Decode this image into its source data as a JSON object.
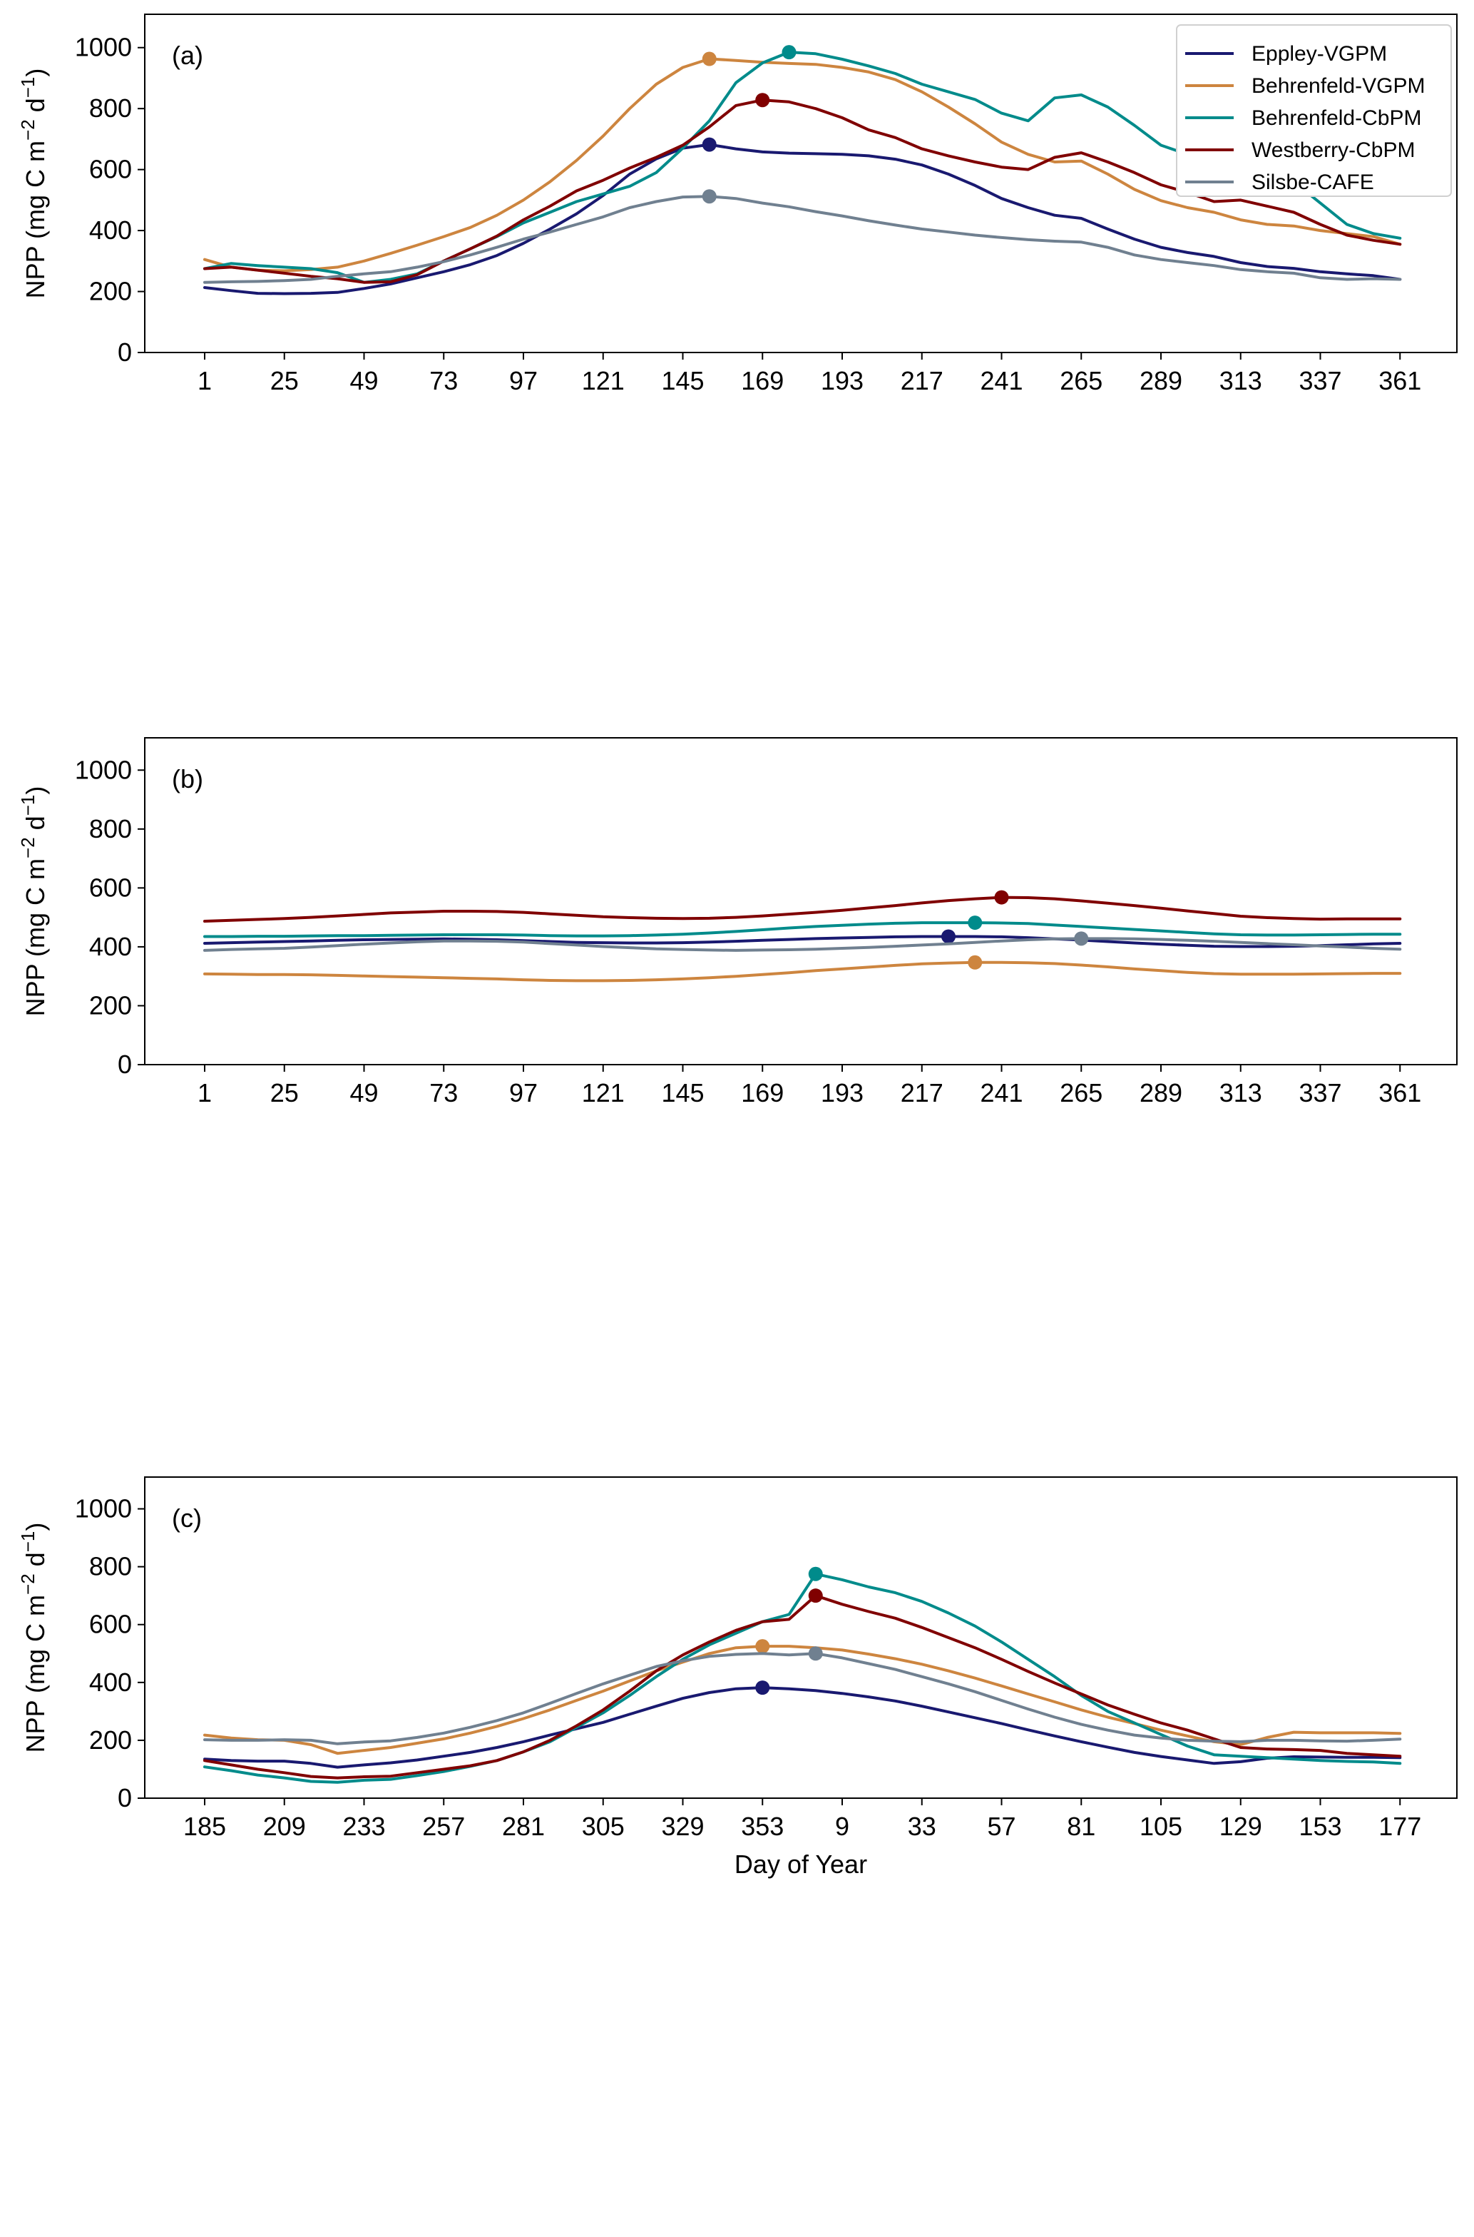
{
  "chart_data": [
    {
      "type": "line",
      "panel_label": "(a)",
      "xlabel": "",
      "ylabel": "NPP (mg C m^-2 d^-1)",
      "ylim": [
        0,
        1100
      ],
      "yticks": [
        0,
        200,
        400,
        600,
        800,
        1000
      ],
      "x": [
        1,
        9,
        17,
        25,
        33,
        41,
        49,
        57,
        65,
        73,
        81,
        89,
        97,
        105,
        113,
        121,
        129,
        137,
        145,
        153,
        161,
        169,
        177,
        185,
        193,
        201,
        209,
        217,
        225,
        233,
        241,
        249,
        257,
        265,
        273,
        281,
        289,
        297,
        305,
        313,
        321,
        329,
        337,
        345,
        353,
        361
      ],
      "xlim": [
        -23,
        385
      ],
      "xticks": [
        1,
        25,
        49,
        73,
        97,
        121,
        145,
        169,
        193,
        217,
        241,
        265,
        289,
        313,
        337,
        361
      ],
      "xtick_labels": [
        "1",
        "25",
        "49",
        "73",
        "97",
        "121",
        "145",
        "169",
        "193",
        "217",
        "241",
        "265",
        "289",
        "313",
        "337",
        "361"
      ],
      "legend": "top-right",
      "series": [
        {
          "name": "Eppley-VGPM",
          "color": "#191970",
          "peak_index": 19,
          "values": [
            213,
            203,
            194,
            193,
            194,
            197,
            210,
            225,
            245,
            265,
            288,
            318,
            358,
            405,
            455,
            515,
            585,
            635,
            670,
            682,
            668,
            658,
            654,
            652,
            650,
            645,
            634,
            615,
            585,
            548,
            505,
            475,
            450,
            440,
            405,
            372,
            345,
            328,
            315,
            295,
            282,
            276,
            265,
            258,
            252,
            240
          ]
        },
        {
          "name": "Behrenfeld-VGPM",
          "color": "#CD853F",
          "peak_index": 19,
          "values": [
            305,
            280,
            270,
            268,
            272,
            280,
            300,
            325,
            352,
            380,
            410,
            450,
            500,
            560,
            630,
            710,
            800,
            880,
            935,
            963,
            958,
            952,
            948,
            945,
            935,
            920,
            895,
            855,
            805,
            750,
            690,
            650,
            625,
            628,
            585,
            535,
            498,
            475,
            460,
            435,
            420,
            415,
            400,
            390,
            380,
            355
          ]
        },
        {
          "name": "Behrenfeld-CbPM",
          "color": "#008B8B",
          "peak_index": 22,
          "values": [
            275,
            292,
            285,
            280,
            275,
            262,
            230,
            240,
            258,
            300,
            340,
            380,
            425,
            460,
            495,
            520,
            545,
            590,
            670,
            760,
            885,
            950,
            985,
            980,
            962,
            940,
            915,
            880,
            855,
            830,
            785,
            760,
            835,
            845,
            805,
            745,
            680,
            650,
            605,
            615,
            595,
            560,
            490,
            420,
            390,
            375
          ]
        },
        {
          "name": "Westberry-CbPM",
          "color": "#800000",
          "peak_index": 21,
          "values": [
            275,
            280,
            270,
            260,
            250,
            242,
            230,
            232,
            255,
            300,
            340,
            382,
            435,
            480,
            530,
            565,
            605,
            640,
            680,
            740,
            810,
            828,
            822,
            800,
            770,
            730,
            705,
            668,
            645,
            625,
            608,
            600,
            640,
            655,
            625,
            590,
            550,
            525,
            495,
            500,
            480,
            460,
            420,
            385,
            368,
            355
          ]
        },
        {
          "name": "Silsbe-CAFE",
          "color": "#708090",
          "peak_index": 19,
          "values": [
            230,
            232,
            233,
            236,
            240,
            250,
            258,
            265,
            280,
            298,
            320,
            345,
            372,
            395,
            420,
            445,
            475,
            495,
            510,
            512,
            505,
            490,
            478,
            462,
            448,
            432,
            418,
            405,
            395,
            385,
            377,
            370,
            365,
            362,
            345,
            320,
            305,
            295,
            285,
            272,
            265,
            260,
            245,
            240,
            242,
            240
          ]
        }
      ]
    },
    {
      "type": "line",
      "panel_label": "(b)",
      "xlabel": "",
      "ylabel": "NPP (mg C m^-2 d^-1)",
      "ylim": [
        0,
        1100
      ],
      "yticks": [
        0,
        200,
        400,
        600,
        800,
        1000
      ],
      "x": [
        1,
        9,
        17,
        25,
        33,
        41,
        49,
        57,
        65,
        73,
        81,
        89,
        97,
        105,
        113,
        121,
        129,
        137,
        145,
        153,
        161,
        169,
        177,
        185,
        193,
        201,
        209,
        217,
        225,
        233,
        241,
        249,
        257,
        265,
        273,
        281,
        289,
        297,
        305,
        313,
        321,
        329,
        337,
        345,
        353,
        361
      ],
      "xlim": [
        -23,
        385
      ],
      "xticks": [
        1,
        25,
        49,
        73,
        97,
        121,
        145,
        169,
        193,
        217,
        241,
        265,
        289,
        313,
        337,
        361
      ],
      "xtick_labels": [
        "1",
        "25",
        "49",
        "73",
        "97",
        "121",
        "145",
        "169",
        "193",
        "217",
        "241",
        "265",
        "289",
        "313",
        "337",
        "361"
      ],
      "series": [
        {
          "name": "Eppley-VGPM",
          "color": "#191970",
          "peak_index": 28,
          "values": [
            412,
            414,
            416,
            418,
            420,
            422,
            424,
            425,
            426,
            427,
            426,
            424,
            421,
            418,
            415,
            414,
            413,
            413,
            414,
            416,
            419,
            422,
            425,
            428,
            430,
            432,
            434,
            435,
            435,
            435,
            434,
            431,
            427,
            423,
            418,
            413,
            409,
            405,
            402,
            401,
            401,
            402,
            404,
            407,
            410,
            412
          ]
        },
        {
          "name": "Behrenfeld-VGPM",
          "color": "#CD853F",
          "peak_index": 29,
          "values": [
            308,
            307,
            306,
            306,
            305,
            303,
            301,
            299,
            297,
            295,
            293,
            291,
            288,
            286,
            285,
            285,
            286,
            288,
            291,
            295,
            300,
            306,
            312,
            319,
            325,
            331,
            337,
            342,
            345,
            347,
            347,
            346,
            343,
            338,
            332,
            325,
            319,
            313,
            309,
            307,
            307,
            307,
            308,
            309,
            310,
            310
          ]
        },
        {
          "name": "Behrenfeld-CbPM",
          "color": "#008B8B",
          "peak_index": 29,
          "values": [
            435,
            435,
            436,
            436,
            437,
            438,
            438,
            439,
            440,
            441,
            441,
            441,
            440,
            438,
            437,
            437,
            438,
            440,
            443,
            447,
            452,
            458,
            464,
            469,
            473,
            477,
            480,
            482,
            482,
            482,
            481,
            479,
            474,
            469,
            464,
            459,
            454,
            449,
            444,
            441,
            440,
            440,
            441,
            442,
            443,
            443
          ]
        },
        {
          "name": "Westberry-CbPM",
          "color": "#800000",
          "peak_index": 30,
          "values": [
            487,
            490,
            493,
            496,
            500,
            505,
            510,
            515,
            518,
            521,
            521,
            520,
            517,
            512,
            507,
            502,
            499,
            497,
            496,
            497,
            500,
            505,
            511,
            517,
            524,
            532,
            540,
            549,
            557,
            563,
            568,
            567,
            563,
            556,
            548,
            540,
            531,
            522,
            513,
            504,
            499,
            496,
            494,
            495,
            495,
            495
          ]
        },
        {
          "name": "Silsbe-CAFE",
          "color": "#708090",
          "peak_index": 33,
          "values": [
            388,
            391,
            393,
            395,
            399,
            404,
            409,
            413,
            417,
            420,
            420,
            419,
            416,
            411,
            406,
            401,
            397,
            393,
            391,
            389,
            388,
            389,
            390,
            392,
            395,
            398,
            402,
            406,
            410,
            415,
            420,
            424,
            427,
            428,
            428,
            427,
            425,
            422,
            419,
            415,
            411,
            407,
            403,
            399,
            395,
            392
          ]
        }
      ]
    },
    {
      "type": "line",
      "panel_label": "(c)",
      "xlabel": "Day of Year",
      "ylabel": "NPP (mg C m^-2 d^-1)",
      "ylim": [
        0,
        1100
      ],
      "yticks": [
        0,
        200,
        400,
        600,
        800,
        1000
      ],
      "x": [
        185,
        193,
        201,
        209,
        217,
        225,
        233,
        241,
        249,
        257,
        265,
        273,
        281,
        289,
        297,
        305,
        313,
        321,
        329,
        337,
        345,
        353,
        361,
        1,
        9,
        17,
        25,
        33,
        41,
        49,
        57,
        65,
        73,
        81,
        89,
        97,
        105,
        113,
        121,
        129,
        137,
        145,
        153,
        161,
        169,
        177
      ],
      "xlim": [
        -23,
        385
      ],
      "xticks_index": [
        0,
        3,
        6,
        9,
        12,
        15,
        18,
        21,
        24,
        27,
        30,
        33,
        36,
        39,
        42,
        45
      ],
      "xtick_labels": [
        "185",
        "209",
        "233",
        "257",
        "281",
        "305",
        "329",
        "353",
        "9",
        "33",
        "57",
        "81",
        "105",
        "129",
        "153",
        "177"
      ],
      "series": [
        {
          "name": "Eppley-VGPM",
          "color": "#191970",
          "peak_index": 21,
          "values": [
            135,
            130,
            128,
            128,
            120,
            107,
            115,
            122,
            132,
            145,
            158,
            175,
            195,
            218,
            240,
            262,
            290,
            318,
            345,
            365,
            378,
            382,
            378,
            372,
            362,
            350,
            336,
            318,
            298,
            278,
            258,
            236,
            215,
            195,
            176,
            158,
            144,
            132,
            120,
            126,
            138,
            143,
            142,
            141,
            141,
            140
          ]
        },
        {
          "name": "Behrenfeld-VGPM",
          "color": "#CD853F",
          "peak_index": 21,
          "values": [
            218,
            208,
            202,
            200,
            185,
            155,
            165,
            175,
            190,
            205,
            225,
            248,
            275,
            305,
            338,
            370,
            405,
            440,
            470,
            500,
            520,
            525,
            525,
            520,
            512,
            498,
            482,
            463,
            440,
            415,
            388,
            360,
            333,
            305,
            280,
            258,
            235,
            215,
            195,
            185,
            210,
            228,
            226,
            226,
            226,
            224
          ]
        },
        {
          "name": "Behrenfeld-CbPM",
          "color": "#008B8B",
          "peak_index": 23,
          "values": [
            108,
            95,
            80,
            70,
            58,
            55,
            62,
            65,
            78,
            92,
            110,
            130,
            160,
            195,
            245,
            295,
            355,
            420,
            480,
            530,
            570,
            610,
            635,
            775,
            755,
            730,
            710,
            680,
            640,
            595,
            540,
            480,
            420,
            355,
            300,
            260,
            220,
            180,
            150,
            145,
            140,
            135,
            130,
            127,
            125,
            120
          ]
        },
        {
          "name": "Westberry-CbPM",
          "color": "#800000",
          "peak_index": 23,
          "values": [
            130,
            115,
            100,
            88,
            75,
            70,
            74,
            76,
            88,
            100,
            112,
            130,
            160,
            200,
            250,
            305,
            370,
            440,
            495,
            540,
            580,
            610,
            618,
            700,
            670,
            645,
            622,
            590,
            555,
            520,
            480,
            438,
            398,
            360,
            322,
            290,
            260,
            235,
            205,
            175,
            170,
            168,
            165,
            155,
            150,
            145
          ]
        },
        {
          "name": "Silsbe-CAFE",
          "color": "#708090",
          "peak_index": 23,
          "values": [
            202,
            200,
            200,
            202,
            200,
            188,
            194,
            198,
            210,
            225,
            245,
            268,
            295,
            328,
            362,
            395,
            425,
            455,
            475,
            490,
            497,
            500,
            495,
            500,
            485,
            465,
            445,
            420,
            395,
            368,
            338,
            308,
            280,
            255,
            235,
            218,
            208,
            200,
            197,
            195,
            200,
            200,
            198,
            197,
            200,
            204
          ]
        }
      ]
    }
  ]
}
